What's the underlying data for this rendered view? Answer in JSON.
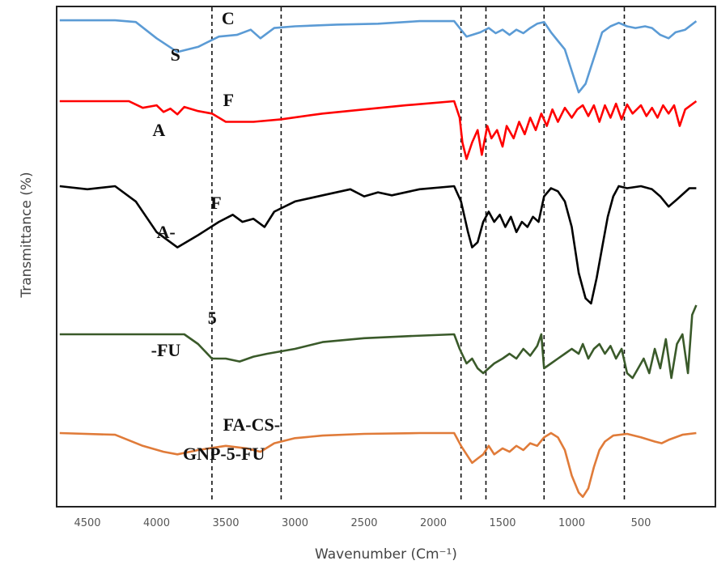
{
  "chart_data": {
    "type": "line",
    "title": "",
    "xlabel": "Wavenumber (Cm⁻¹)",
    "ylabel": "Transmittance (%)",
    "xlim": [
      4700,
      0
    ],
    "x_reversed": true,
    "grid": false,
    "x_ticks": [
      4500,
      4000,
      3500,
      3000,
      2500,
      2000,
      1500,
      1000,
      500
    ],
    "reference_lines": [
      3600,
      3100,
      1800,
      1620,
      1200,
      620
    ],
    "label_fragments": [
      {
        "text": "C",
        "x": 3530,
        "series": 0
      },
      {
        "text": "S",
        "x": 3900,
        "series": 0
      },
      {
        "text": "F",
        "x": 3520,
        "series": 1
      },
      {
        "text": "A",
        "x": 4030,
        "series": 1
      },
      {
        "text": "F",
        "x": 3610,
        "series": 2
      },
      {
        "text": "A-",
        "x": 4000,
        "series": 2
      },
      {
        "text": "5",
        "x": 3630,
        "series": 3
      },
      {
        "text": "-FU",
        "x": 4040,
        "series": 3
      },
      {
        "text": "FA-CS-",
        "x": 3520,
        "series": 4
      },
      {
        "text": "GNP-5-FU",
        "x": 3810,
        "series": 4
      }
    ],
    "series": [
      {
        "color": "#5b9bd5",
        "points": [
          [
            4700,
            0.1
          ],
          [
            4300,
            0.1
          ],
          [
            4150,
            0.3
          ],
          [
            4000,
            2.2
          ],
          [
            3850,
            3.8
          ],
          [
            3700,
            3.2
          ],
          [
            3550,
            2.0
          ],
          [
            3420,
            1.8
          ],
          [
            3320,
            1.2
          ],
          [
            3250,
            2.2
          ],
          [
            3150,
            1.0
          ],
          [
            3000,
            0.8
          ],
          [
            2700,
            0.6
          ],
          [
            2400,
            0.5
          ],
          [
            2100,
            0.2
          ],
          [
            1850,
            0.2
          ],
          [
            1810,
            1.0
          ],
          [
            1760,
            2.0
          ],
          [
            1720,
            1.8
          ],
          [
            1660,
            1.5
          ],
          [
            1600,
            1.0
          ],
          [
            1550,
            1.6
          ],
          [
            1500,
            1.2
          ],
          [
            1450,
            1.8
          ],
          [
            1400,
            1.2
          ],
          [
            1350,
            1.6
          ],
          [
            1300,
            1.0
          ],
          [
            1250,
            0.5
          ],
          [
            1200,
            0.3
          ],
          [
            1150,
            1.5
          ],
          [
            1100,
            2.5
          ],
          [
            1050,
            3.5
          ],
          [
            1000,
            6.0
          ],
          [
            950,
            8.5
          ],
          [
            900,
            7.5
          ],
          [
            860,
            5.5
          ],
          [
            820,
            3.5
          ],
          [
            780,
            1.5
          ],
          [
            720,
            0.8
          ],
          [
            660,
            0.4
          ],
          [
            600,
            0.8
          ],
          [
            540,
            1.0
          ],
          [
            470,
            0.8
          ],
          [
            420,
            1.0
          ],
          [
            360,
            1.8
          ],
          [
            300,
            2.2
          ],
          [
            250,
            1.5
          ],
          [
            180,
            1.2
          ],
          [
            100,
            0.2
          ]
        ]
      },
      {
        "color": "#ff0000",
        "points": [
          [
            4700,
            0
          ],
          [
            4200,
            0
          ],
          [
            4100,
            0.8
          ],
          [
            4000,
            0.5
          ],
          [
            3950,
            1.3
          ],
          [
            3900,
            0.9
          ],
          [
            3850,
            1.6
          ],
          [
            3800,
            0.7
          ],
          [
            3700,
            1.2
          ],
          [
            3600,
            1.5
          ],
          [
            3500,
            2.5
          ],
          [
            3300,
            2.5
          ],
          [
            3100,
            2.2
          ],
          [
            2800,
            1.5
          ],
          [
            2500,
            1.0
          ],
          [
            2200,
            0.5
          ],
          [
            1850,
            0
          ],
          [
            1810,
            2.0
          ],
          [
            1790,
            5.0
          ],
          [
            1760,
            7.0
          ],
          [
            1720,
            5.0
          ],
          [
            1680,
            3.5
          ],
          [
            1650,
            6.5
          ],
          [
            1610,
            3.0
          ],
          [
            1580,
            4.5
          ],
          [
            1540,
            3.5
          ],
          [
            1500,
            5.5
          ],
          [
            1470,
            3.0
          ],
          [
            1420,
            4.5
          ],
          [
            1380,
            2.5
          ],
          [
            1340,
            4.0
          ],
          [
            1300,
            2.0
          ],
          [
            1260,
            3.5
          ],
          [
            1220,
            1.5
          ],
          [
            1180,
            3.0
          ],
          [
            1140,
            1.0
          ],
          [
            1100,
            2.5
          ],
          [
            1050,
            0.8
          ],
          [
            1000,
            2.0
          ],
          [
            960,
            1.0
          ],
          [
            920,
            0.5
          ],
          [
            880,
            1.8
          ],
          [
            840,
            0.5
          ],
          [
            800,
            2.5
          ],
          [
            760,
            0.5
          ],
          [
            720,
            2.0
          ],
          [
            680,
            0.3
          ],
          [
            640,
            2.2
          ],
          [
            600,
            0.4
          ],
          [
            560,
            1.5
          ],
          [
            500,
            0.5
          ],
          [
            460,
            1.8
          ],
          [
            420,
            0.8
          ],
          [
            380,
            2.0
          ],
          [
            340,
            0.5
          ],
          [
            300,
            1.5
          ],
          [
            260,
            0.5
          ],
          [
            220,
            3.0
          ],
          [
            180,
            1.0
          ],
          [
            100,
            0
          ]
        ]
      },
      {
        "color": "#000000",
        "points": [
          [
            4700,
            0
          ],
          [
            4500,
            0.3
          ],
          [
            4300,
            0
          ],
          [
            4150,
            1.5
          ],
          [
            4000,
            4.5
          ],
          [
            3850,
            6.0
          ],
          [
            3700,
            4.8
          ],
          [
            3550,
            3.5
          ],
          [
            3450,
            2.8
          ],
          [
            3380,
            3.5
          ],
          [
            3300,
            3.2
          ],
          [
            3220,
            4.0
          ],
          [
            3150,
            2.5
          ],
          [
            3000,
            1.5
          ],
          [
            2800,
            0.9
          ],
          [
            2600,
            0.3
          ],
          [
            2500,
            1.0
          ],
          [
            2400,
            0.6
          ],
          [
            2300,
            0.9
          ],
          [
            2100,
            0.3
          ],
          [
            1850,
            0
          ],
          [
            1800,
            1.5
          ],
          [
            1750,
            4.5
          ],
          [
            1720,
            6.0
          ],
          [
            1680,
            5.5
          ],
          [
            1640,
            3.5
          ],
          [
            1600,
            2.5
          ],
          [
            1560,
            3.5
          ],
          [
            1520,
            2.8
          ],
          [
            1480,
            4.0
          ],
          [
            1440,
            3.0
          ],
          [
            1400,
            4.5
          ],
          [
            1360,
            3.5
          ],
          [
            1320,
            4.0
          ],
          [
            1280,
            3.0
          ],
          [
            1240,
            3.5
          ],
          [
            1200,
            1.0
          ],
          [
            1150,
            0.2
          ],
          [
            1100,
            0.5
          ],
          [
            1050,
            1.5
          ],
          [
            1000,
            4.0
          ],
          [
            950,
            8.5
          ],
          [
            900,
            11.0
          ],
          [
            860,
            11.5
          ],
          [
            820,
            9.0
          ],
          [
            780,
            6.0
          ],
          [
            740,
            3.0
          ],
          [
            700,
            1.0
          ],
          [
            660,
            0
          ],
          [
            600,
            0.2
          ],
          [
            500,
            0
          ],
          [
            420,
            0.3
          ],
          [
            360,
            1.0
          ],
          [
            300,
            2.0
          ],
          [
            240,
            1.3
          ],
          [
            150,
            0.2
          ],
          [
            100,
            0.2
          ]
        ]
      },
      {
        "color": "#3a5a2a",
        "points": [
          [
            4700,
            0
          ],
          [
            3800,
            0
          ],
          [
            3700,
            1.0
          ],
          [
            3600,
            2.5
          ],
          [
            3500,
            2.5
          ],
          [
            3400,
            2.8
          ],
          [
            3300,
            2.3
          ],
          [
            3200,
            2.0
          ],
          [
            3000,
            1.5
          ],
          [
            2800,
            0.8
          ],
          [
            2500,
            0.4
          ],
          [
            2200,
            0.2
          ],
          [
            1850,
            0
          ],
          [
            1810,
            1.5
          ],
          [
            1760,
            3.0
          ],
          [
            1720,
            2.5
          ],
          [
            1680,
            3.5
          ],
          [
            1640,
            4.0
          ],
          [
            1600,
            3.5
          ],
          [
            1560,
            3.0
          ],
          [
            1500,
            2.5
          ],
          [
            1450,
            2.0
          ],
          [
            1400,
            2.5
          ],
          [
            1350,
            1.5
          ],
          [
            1300,
            2.2
          ],
          [
            1250,
            1.2
          ],
          [
            1220,
            0
          ],
          [
            1200,
            3.5
          ],
          [
            1150,
            3.0
          ],
          [
            1100,
            2.5
          ],
          [
            1050,
            2.0
          ],
          [
            1000,
            1.5
          ],
          [
            950,
            2.0
          ],
          [
            920,
            1.0
          ],
          [
            880,
            2.5
          ],
          [
            840,
            1.5
          ],
          [
            800,
            1.0
          ],
          [
            760,
            2.0
          ],
          [
            720,
            1.2
          ],
          [
            680,
            2.5
          ],
          [
            640,
            1.5
          ],
          [
            600,
            4.0
          ],
          [
            560,
            4.5
          ],
          [
            520,
            3.5
          ],
          [
            480,
            2.5
          ],
          [
            440,
            4.0
          ],
          [
            400,
            1.5
          ],
          [
            360,
            3.5
          ],
          [
            320,
            0.5
          ],
          [
            280,
            4.5
          ],
          [
            240,
            1.0
          ],
          [
            200,
            0
          ],
          [
            160,
            4.0
          ],
          [
            130,
            -2.0
          ],
          [
            100,
            -3.0
          ]
        ]
      },
      {
        "color": "#e07b39",
        "points": [
          [
            4700,
            0
          ],
          [
            4300,
            0.2
          ],
          [
            4100,
            1.5
          ],
          [
            3950,
            2.2
          ],
          [
            3850,
            2.5
          ],
          [
            3700,
            2.0
          ],
          [
            3500,
            1.5
          ],
          [
            3350,
            1.8
          ],
          [
            3250,
            2.2
          ],
          [
            3150,
            1.2
          ],
          [
            3000,
            0.6
          ],
          [
            2800,
            0.3
          ],
          [
            2500,
            0.1
          ],
          [
            2100,
            0
          ],
          [
            1850,
            0
          ],
          [
            1800,
            1.5
          ],
          [
            1760,
            2.5
          ],
          [
            1720,
            3.5
          ],
          [
            1680,
            3.0
          ],
          [
            1640,
            2.5
          ],
          [
            1600,
            1.5
          ],
          [
            1560,
            2.5
          ],
          [
            1500,
            1.8
          ],
          [
            1450,
            2.2
          ],
          [
            1400,
            1.5
          ],
          [
            1350,
            2.0
          ],
          [
            1300,
            1.2
          ],
          [
            1250,
            1.5
          ],
          [
            1200,
            0.5
          ],
          [
            1150,
            0
          ],
          [
            1100,
            0.5
          ],
          [
            1050,
            2.0
          ],
          [
            1000,
            5.0
          ],
          [
            950,
            7.0
          ],
          [
            920,
            7.5
          ],
          [
            880,
            6.5
          ],
          [
            840,
            4.0
          ],
          [
            800,
            2.0
          ],
          [
            760,
            1.0
          ],
          [
            700,
            0.3
          ],
          [
            600,
            0.1
          ],
          [
            500,
            0.5
          ],
          [
            400,
            1.0
          ],
          [
            350,
            1.2
          ],
          [
            300,
            0.8
          ],
          [
            200,
            0.2
          ],
          [
            100,
            0
          ]
        ]
      }
    ]
  }
}
